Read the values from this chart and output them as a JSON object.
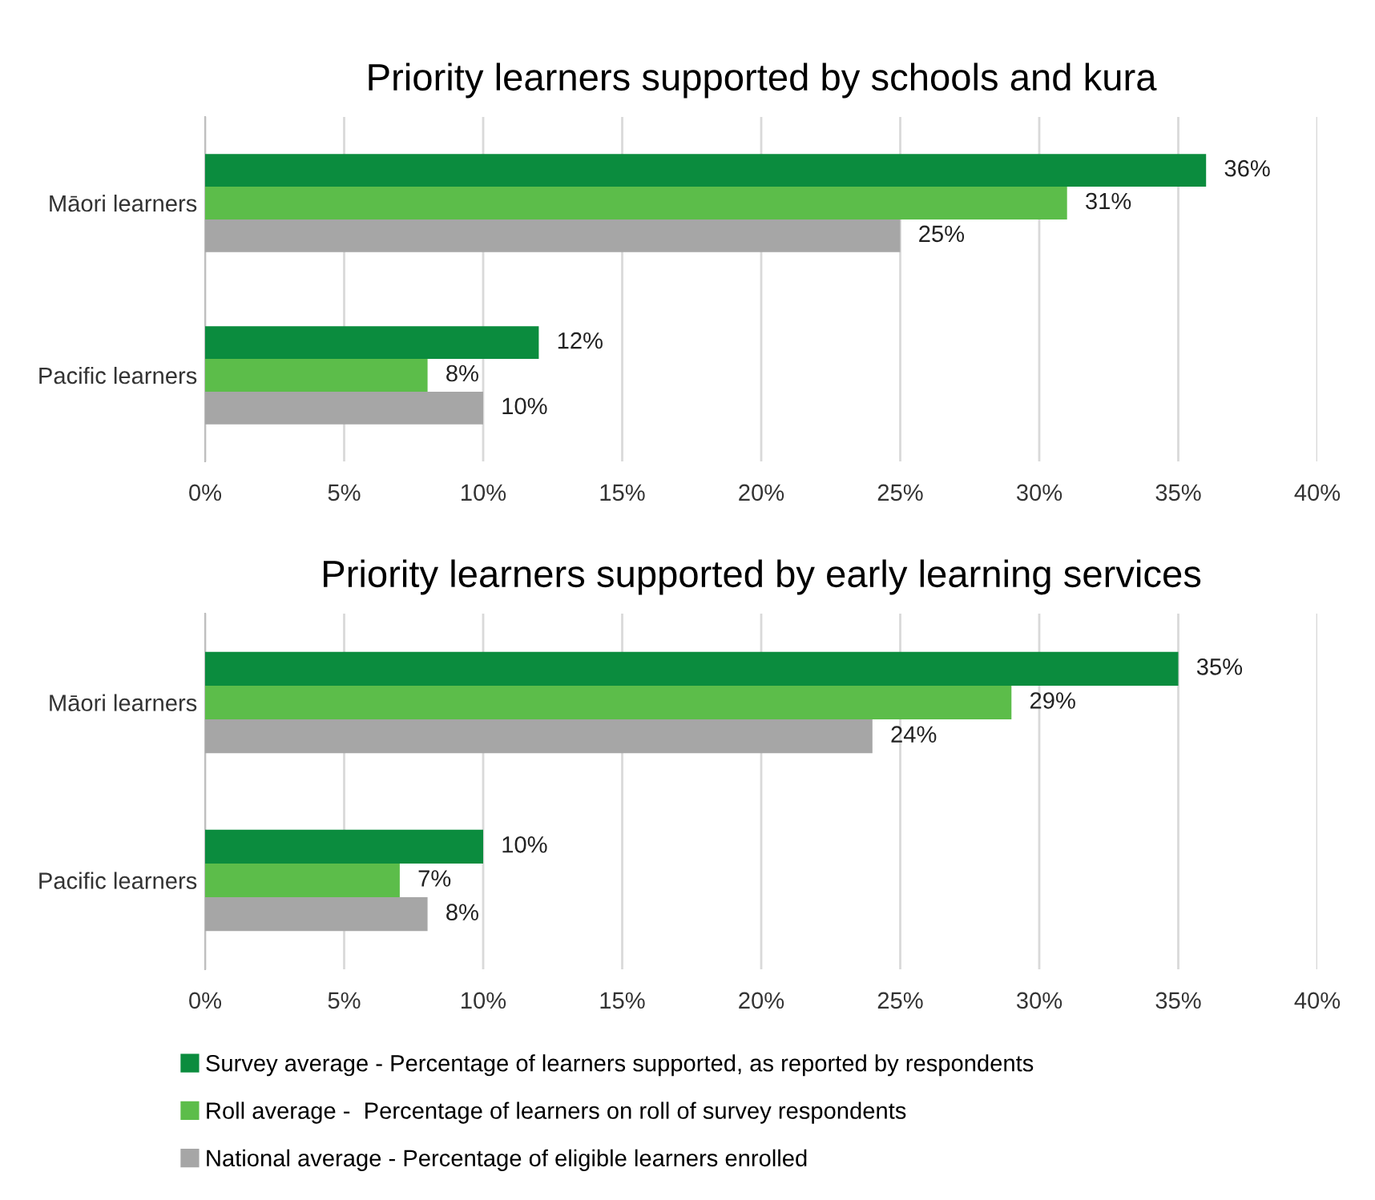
{
  "chart_data": [
    {
      "type": "bar",
      "orientation": "horizontal",
      "title": "Priority learners supported by schools and kura",
      "categories": [
        "Māori learners",
        "Pacific learners"
      ],
      "series": [
        {
          "color": "#0b8c3e",
          "values": [
            36,
            12
          ],
          "value_labels": [
            "36%",
            "12%"
          ]
        },
        {
          "color": "#5cbd4a",
          "values": [
            31,
            8
          ],
          "value_labels": [
            "31%",
            "8%"
          ]
        },
        {
          "color": "#a6a6a6",
          "values": [
            25,
            10
          ],
          "value_labels": [
            "25%",
            "10%"
          ]
        }
      ],
      "xlim": [
        0,
        40
      ],
      "xticks": [
        {
          "value": 0,
          "label": "0%"
        },
        {
          "value": 5,
          "label": "5%"
        },
        {
          "value": 10,
          "label": "10%"
        },
        {
          "value": 15,
          "label": "15%"
        },
        {
          "value": 20,
          "label": "20%"
        },
        {
          "value": 25,
          "label": "25%"
        },
        {
          "value": 30,
          "label": "30%"
        },
        {
          "value": 35,
          "label": "35%"
        },
        {
          "value": 40,
          "label": "40%"
        }
      ],
      "grid": "x",
      "legend": false
    },
    {
      "type": "bar",
      "orientation": "horizontal",
      "title": "Priority learners supported by early learning services",
      "categories": [
        "Māori learners",
        "Pacific learners"
      ],
      "series": [
        {
          "name": "Survey average - Percentage of learners supported, as reported by respondents",
          "color": "#0b8c3e",
          "values": [
            35,
            10
          ],
          "value_labels": [
            "35%",
            "10%"
          ]
        },
        {
          "name": "Roll average -  Percentage of learners on roll of survey respondents",
          "color": "#5cbd4a",
          "values": [
            29,
            7
          ],
          "value_labels": [
            "29%",
            "7%"
          ]
        },
        {
          "name": "National average - Percentage of eligible learners enrolled",
          "color": "#a6a6a6",
          "values": [
            24,
            8
          ],
          "value_labels": [
            "24%",
            "8%"
          ]
        }
      ],
      "xlim": [
        0,
        40
      ],
      "xticks": [
        {
          "value": 0,
          "label": "0%"
        },
        {
          "value": 5,
          "label": "5%"
        },
        {
          "value": 10,
          "label": "10%"
        },
        {
          "value": 15,
          "label": "15%"
        },
        {
          "value": 20,
          "label": "20%"
        },
        {
          "value": 25,
          "label": "25%"
        },
        {
          "value": 30,
          "label": "30%"
        },
        {
          "value": 35,
          "label": "35%"
        },
        {
          "value": 40,
          "label": "40%"
        }
      ],
      "grid": "x",
      "legend": "bottom"
    }
  ]
}
